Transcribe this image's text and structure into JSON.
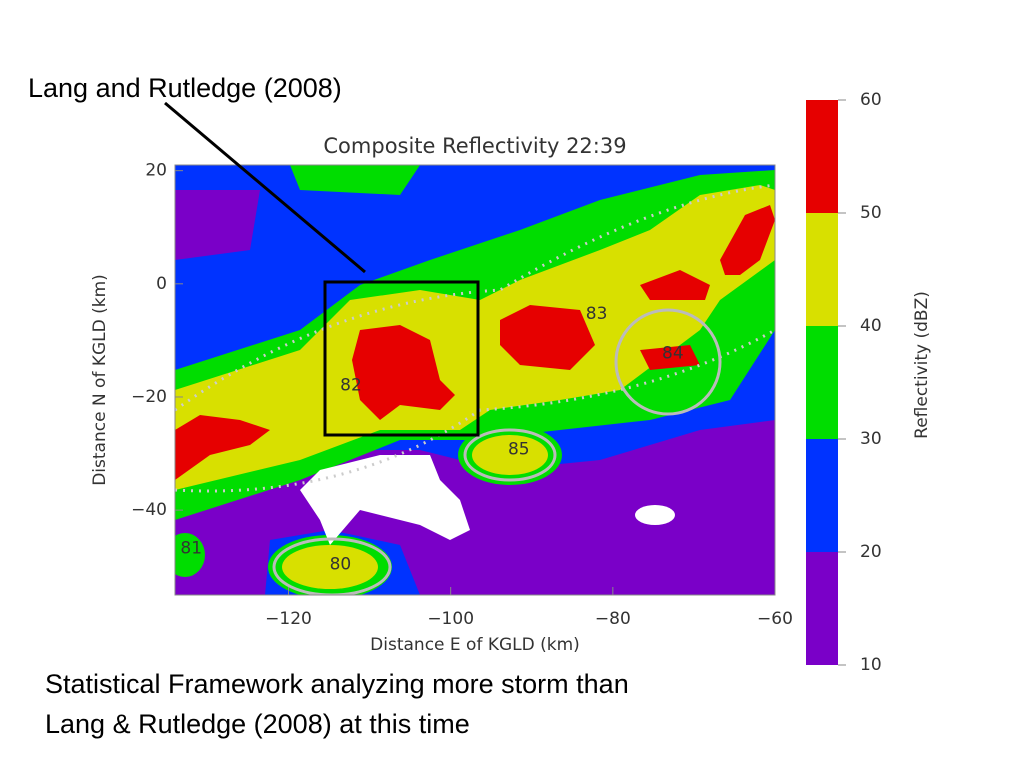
{
  "slide": {
    "callout": "Lang and Rutledge (2008)",
    "caption_lines": [
      "Statistical Framework analyzing more storm than",
      "Lang & Rutledge (2008) at this time"
    ]
  },
  "chart_data": {
    "type": "contour",
    "title": "Composite Reflectivity 22:39",
    "x_label": "Distance E of KGLD (km)",
    "y_label": "Distance N of KGLD (km)",
    "xlim": [
      -134,
      -60
    ],
    "ylim": [
      -55,
      21
    ],
    "xticks": [
      {
        "value": -120,
        "label": "−120"
      },
      {
        "value": -100,
        "label": "−100"
      },
      {
        "value": -80,
        "label": "−80"
      },
      {
        "value": -60,
        "label": "−60"
      }
    ],
    "yticks": [
      20,
      0,
      {
        "value": -20,
        "label": "−20"
      },
      {
        "value": -40,
        "label": "−40"
      }
    ],
    "annotations": [
      {
        "text": "83",
        "x": -82,
        "y": -5.3
      },
      {
        "text": "84",
        "x": -72.6,
        "y": -12.3
      },
      {
        "text": "82",
        "x": -112.3,
        "y": -18
      },
      {
        "text": "85",
        "x": -91.6,
        "y": -29.3
      },
      {
        "text": "80",
        "x": -113.6,
        "y": -49.6
      },
      {
        "text": "81",
        "x": -132,
        "y": -46.8
      }
    ],
    "colorbar": {
      "label": "Reflectivity (dBZ)",
      "levels": [
        10,
        20,
        30,
        40,
        50,
        60
      ],
      "colors": [
        "#7a00c8",
        "#0033ff",
        "#00dd00",
        "#d8e000",
        "#e60000"
      ]
    }
  }
}
